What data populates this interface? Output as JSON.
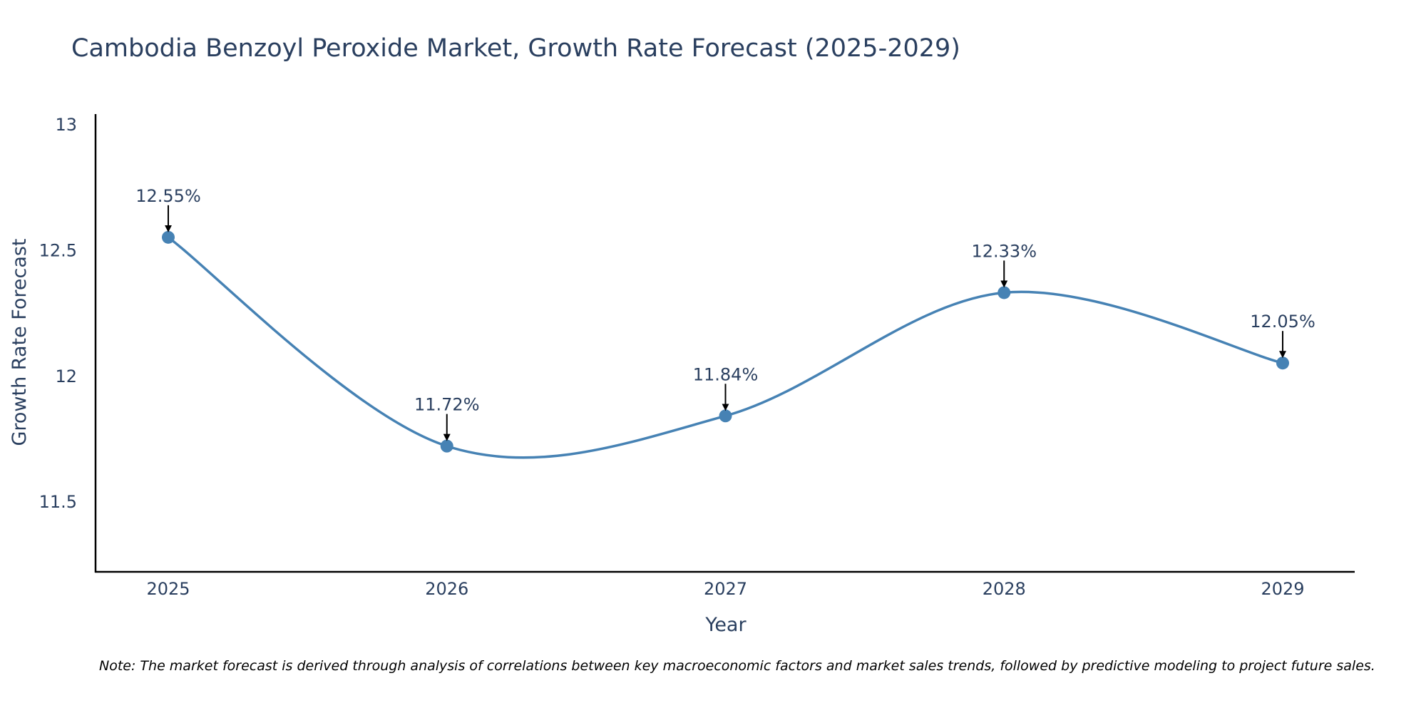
{
  "colors": {
    "line": "#4682B4",
    "text": "#2a3f5f",
    "axis": "#000000",
    "arrow": "#000000"
  },
  "chart_data": {
    "type": "line",
    "title": "Cambodia Benzoyl Peroxide Market, Growth Rate Forecast (2025-2029)",
    "xlabel": "Year",
    "ylabel": "Growth Rate Forecast",
    "categories": [
      "2025",
      "2026",
      "2027",
      "2028",
      "2029"
    ],
    "values": [
      12.55,
      11.72,
      11.84,
      12.33,
      12.05
    ],
    "data_labels": [
      "12.55%",
      "11.72%",
      "11.84%",
      "12.33%",
      "12.05%"
    ],
    "ylim": [
      11.22,
      13.04
    ],
    "yticks": [
      11.5,
      12,
      12.5,
      13
    ],
    "ytick_labels": [
      "11.5",
      "12",
      "12.5",
      "13"
    ],
    "grid": false,
    "line_shape": "spline"
  },
  "note": "Note: The market forecast is derived through analysis of correlations between key macroeconomic factors and market sales trends, followed by predictive modeling to project future sales."
}
